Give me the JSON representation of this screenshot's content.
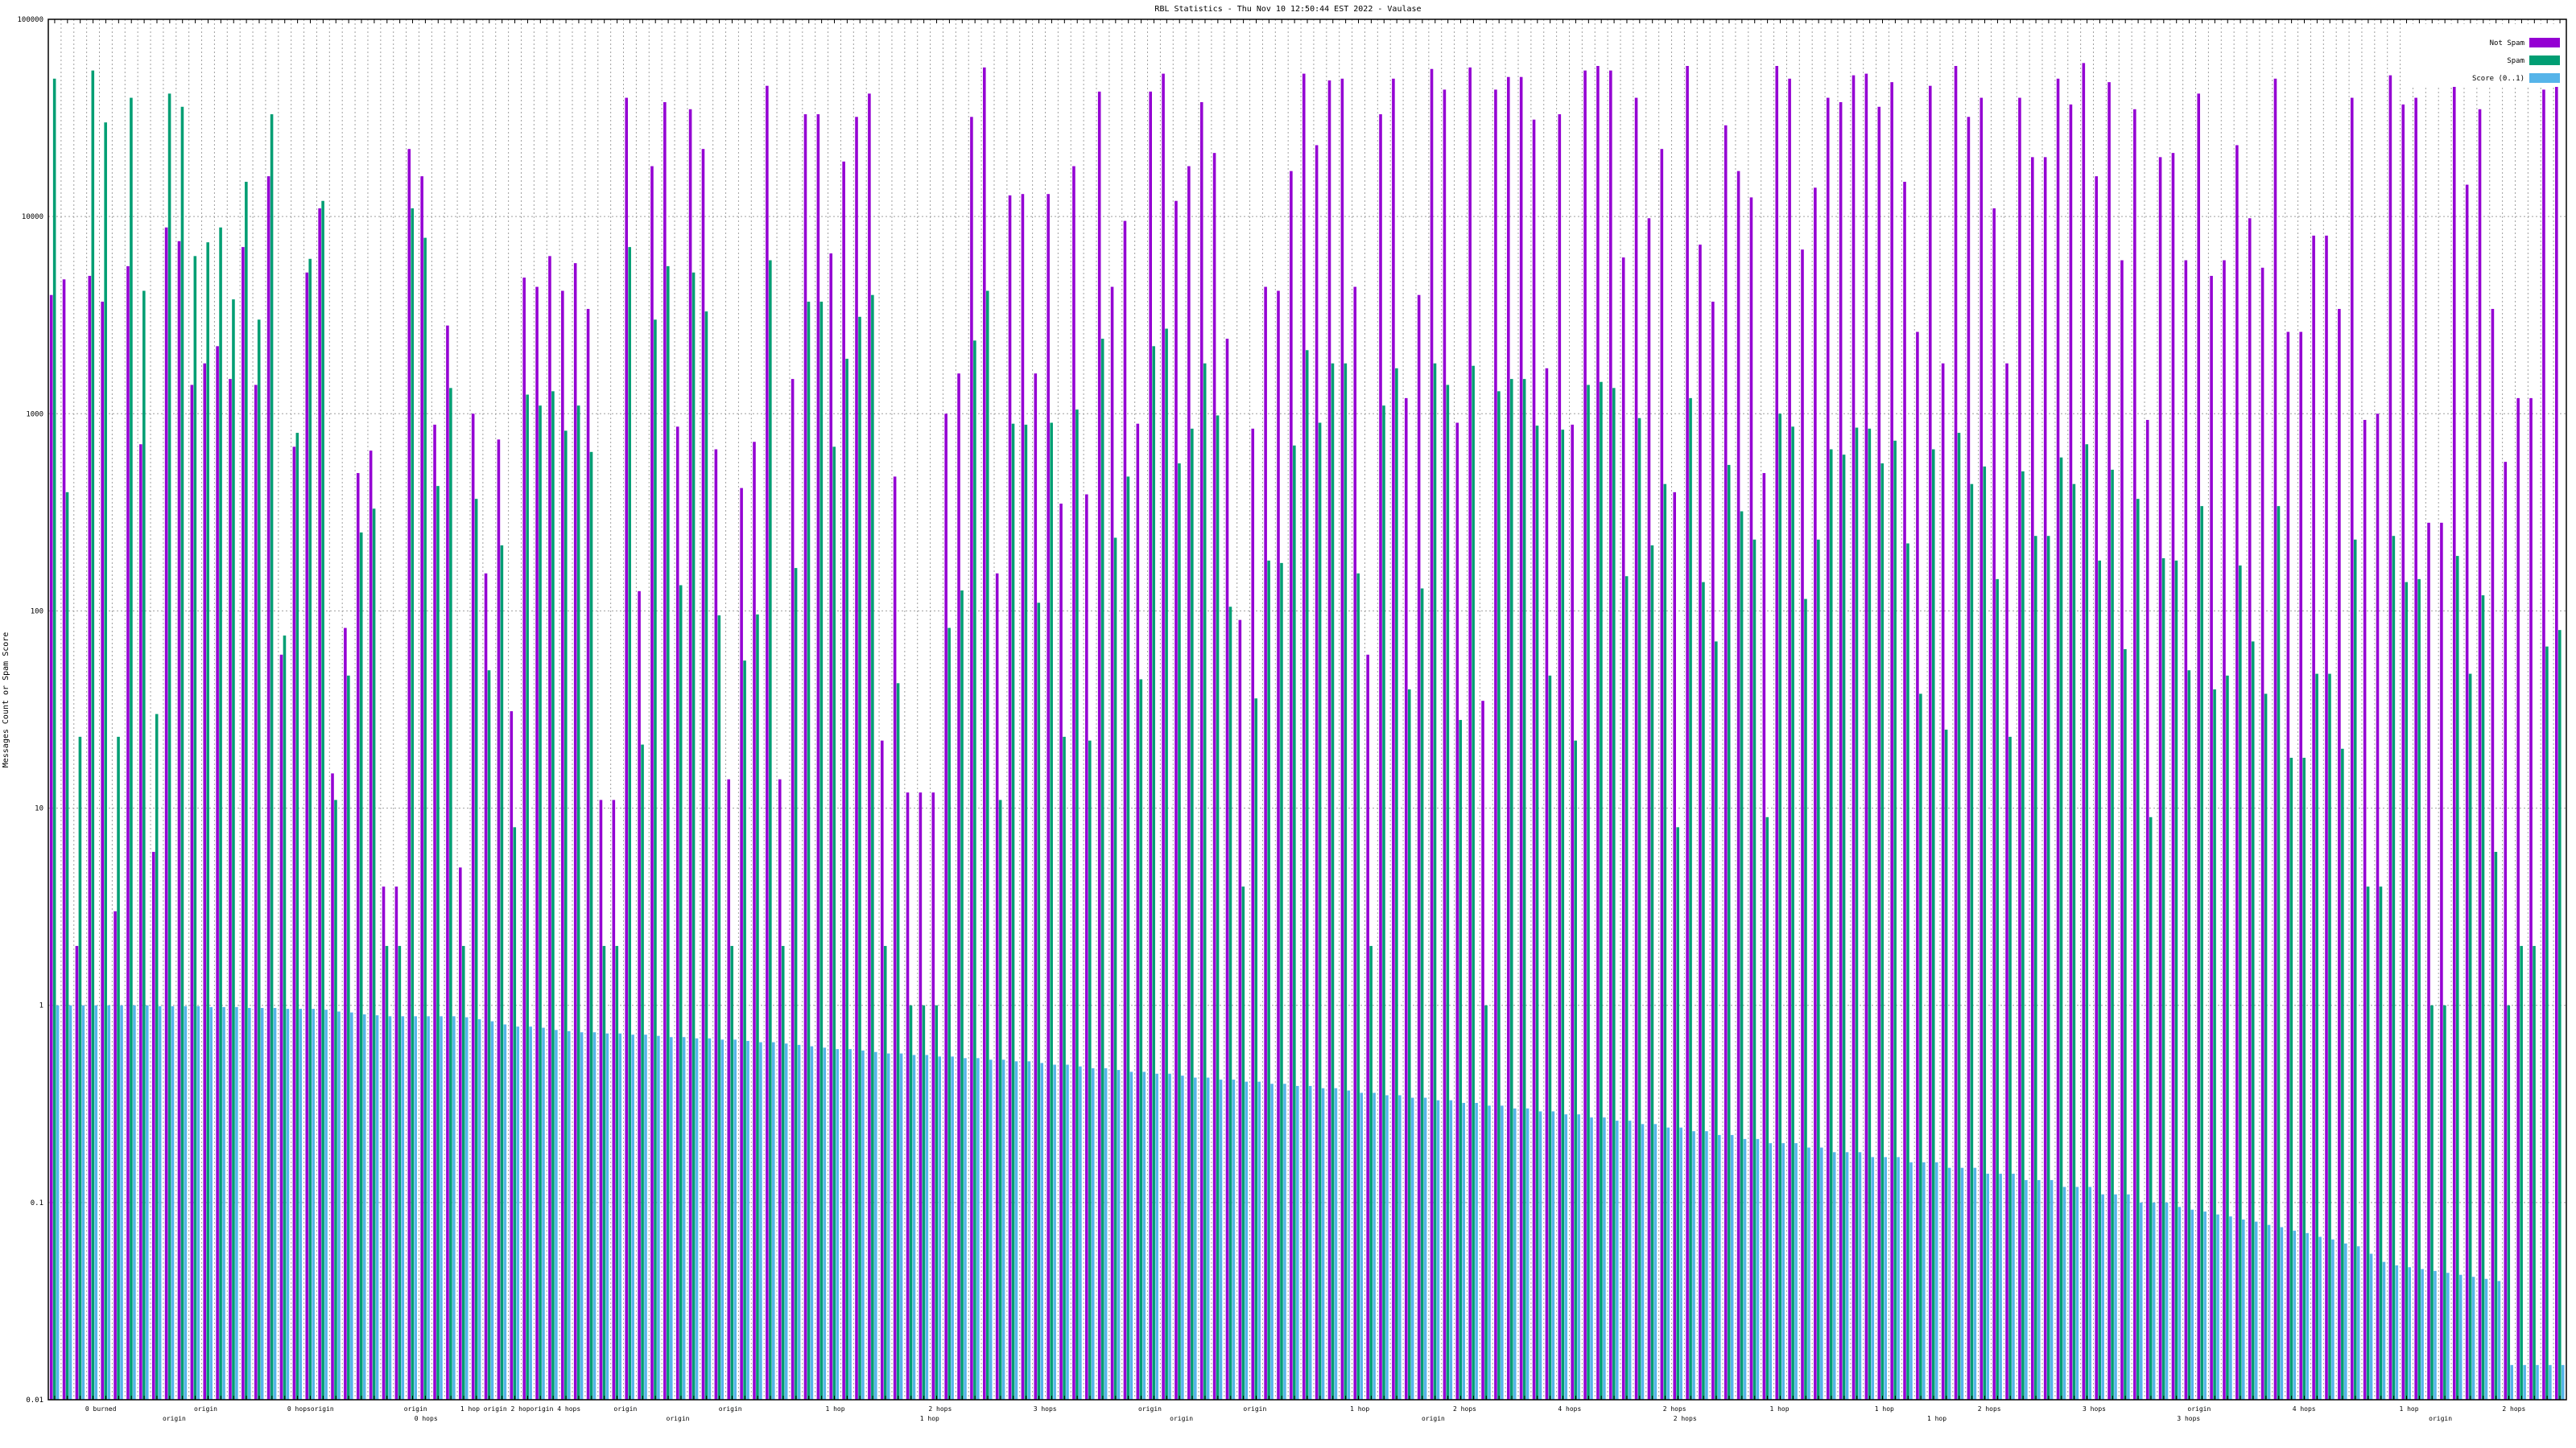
{
  "chart_data": {
    "type": "bar",
    "title": "RBL Statistics - Thu Nov 10 12:50:44 EST 2022 - Vaulase",
    "ylabel": "Messages Count or Spam Score",
    "xlabel": "",
    "yscale": "log",
    "ylim": [
      0.01,
      100000
    ],
    "yticks": [
      "0.01",
      "0.1",
      "1",
      "10",
      "100",
      "1000",
      "10000",
      "100000"
    ],
    "legend_position": "top-right",
    "colors": {
      "not_spam": "#9400d3",
      "spam": "#009e73",
      "score": "#56b4e9"
    },
    "series_names": {
      "not_spam": "Not Spam",
      "spam": "Spam",
      "score": "Score (0..1)"
    },
    "x_label_rows": [
      [
        "0 burned",
        "origin",
        "0 hopsorigin",
        "origin",
        "1 hop origin 2 hoporigin 4 hops",
        "origin",
        "origin",
        "1 hop",
        "2 hops",
        "3 hops",
        "origin",
        "origin",
        "1 hop",
        "2 hops",
        "4 hops",
        "2 hops",
        "1 hop",
        "1 hop",
        "2 hops",
        "3 hops",
        "origin",
        "4 hops",
        "1 hop",
        "2 hops"
      ],
      [
        "origin",
        "0 hops",
        "origin",
        "1 hop",
        "origin",
        "origin",
        "2 hops",
        "1 hop",
        "3 hops",
        "origin"
      ]
    ],
    "bars": [
      {
        "not_spam": 4000,
        "spam": 50000,
        "score": 1.0
      },
      {
        "not_spam": 4800,
        "spam": 400,
        "score": 1.0
      },
      {
        "not_spam": 2,
        "spam": 23,
        "score": 1.0
      },
      {
        "not_spam": 5000,
        "spam": 55000,
        "score": 1.0
      },
      {
        "not_spam": 3700,
        "spam": 30000,
        "score": 1.0
      },
      {
        "not_spam": 3,
        "spam": 23,
        "score": 1.0
      },
      {
        "not_spam": 5600,
        "spam": 40000,
        "score": 1.0
      },
      {
        "not_spam": 700,
        "spam": 4200,
        "score": 1.0
      },
      {
        "not_spam": 6,
        "spam": 30,
        "score": 0.99
      },
      {
        "not_spam": 8800,
        "spam": 42000,
        "score": 0.99
      },
      {
        "not_spam": 7500,
        "spam": 36000,
        "score": 0.99
      },
      {
        "not_spam": 1400,
        "spam": 6300,
        "score": 0.99
      },
      {
        "not_spam": 1800,
        "spam": 7400,
        "score": 0.98
      },
      {
        "not_spam": 2200,
        "spam": 8800,
        "score": 0.98
      },
      {
        "not_spam": 1500,
        "spam": 3800,
        "score": 0.98
      },
      {
        "not_spam": 7000,
        "spam": 15000,
        "score": 0.97
      },
      {
        "not_spam": 1400,
        "spam": 3000,
        "score": 0.97
      },
      {
        "not_spam": 16000,
        "spam": 33000,
        "score": 0.97
      },
      {
        "not_spam": 60,
        "spam": 75,
        "score": 0.96
      },
      {
        "not_spam": 680,
        "spam": 800,
        "score": 0.96
      },
      {
        "not_spam": 5200,
        "spam": 6100,
        "score": 0.96
      },
      {
        "not_spam": 11000,
        "spam": 12000,
        "score": 0.95
      },
      {
        "not_spam": 15,
        "spam": 11,
        "score": 0.93
      },
      {
        "not_spam": 82,
        "spam": 47,
        "score": 0.92
      },
      {
        "not_spam": 500,
        "spam": 250,
        "score": 0.9
      },
      {
        "not_spam": 650,
        "spam": 330,
        "score": 0.89
      },
      {
        "not_spam": 4,
        "spam": 2,
        "score": 0.88
      },
      {
        "not_spam": 4,
        "spam": 2,
        "score": 0.88
      },
      {
        "not_spam": 22000,
        "spam": 11000,
        "score": 0.88
      },
      {
        "not_spam": 16000,
        "spam": 7800,
        "score": 0.88
      },
      {
        "not_spam": 880,
        "spam": 430,
        "score": 0.88
      },
      {
        "not_spam": 2800,
        "spam": 1350,
        "score": 0.88
      },
      {
        "not_spam": 5,
        "spam": 2,
        "score": 0.87
      },
      {
        "not_spam": 1000,
        "spam": 370,
        "score": 0.85
      },
      {
        "not_spam": 155,
        "spam": 50,
        "score": 0.83
      },
      {
        "not_spam": 740,
        "spam": 215,
        "score": 0.8
      },
      {
        "not_spam": 31,
        "spam": 8,
        "score": 0.78
      },
      {
        "not_spam": 4900,
        "spam": 1250,
        "score": 0.78
      },
      {
        "not_spam": 4400,
        "spam": 1100,
        "score": 0.77
      },
      {
        "not_spam": 6300,
        "spam": 1300,
        "score": 0.75
      },
      {
        "not_spam": 4200,
        "spam": 820,
        "score": 0.74
      },
      {
        "not_spam": 5800,
        "spam": 1100,
        "score": 0.73
      },
      {
        "not_spam": 3400,
        "spam": 640,
        "score": 0.73
      },
      {
        "not_spam": 11,
        "spam": 2,
        "score": 0.72
      },
      {
        "not_spam": 11,
        "spam": 2,
        "score": 0.72
      },
      {
        "not_spam": 40000,
        "spam": 7000,
        "score": 0.71
      },
      {
        "not_spam": 126,
        "spam": 21,
        "score": 0.71
      },
      {
        "not_spam": 18000,
        "spam": 3000,
        "score": 0.7
      },
      {
        "not_spam": 38000,
        "spam": 5600,
        "score": 0.69
      },
      {
        "not_spam": 860,
        "spam": 135,
        "score": 0.69
      },
      {
        "not_spam": 35000,
        "spam": 5200,
        "score": 0.68
      },
      {
        "not_spam": 22000,
        "spam": 3300,
        "score": 0.68
      },
      {
        "not_spam": 660,
        "spam": 95,
        "score": 0.67
      },
      {
        "not_spam": 14,
        "spam": 2,
        "score": 0.67
      },
      {
        "not_spam": 420,
        "spam": 56,
        "score": 0.66
      },
      {
        "not_spam": 720,
        "spam": 96,
        "score": 0.65
      },
      {
        "not_spam": 46000,
        "spam": 6000,
        "score": 0.65
      },
      {
        "not_spam": 14,
        "spam": 2,
        "score": 0.64
      },
      {
        "not_spam": 1500,
        "spam": 165,
        "score": 0.63
      },
      {
        "not_spam": 33000,
        "spam": 3700,
        "score": 0.62
      },
      {
        "not_spam": 33000,
        "spam": 3700,
        "score": 0.61
      },
      {
        "not_spam": 6500,
        "spam": 680,
        "score": 0.6
      },
      {
        "not_spam": 19000,
        "spam": 1900,
        "score": 0.6
      },
      {
        "not_spam": 32000,
        "spam": 3100,
        "score": 0.59
      },
      {
        "not_spam": 42000,
        "spam": 4000,
        "score": 0.58
      },
      {
        "not_spam": 22,
        "spam": 2,
        "score": 0.57
      },
      {
        "not_spam": 480,
        "spam": 43,
        "score": 0.57
      },
      {
        "not_spam": 12,
        "spam": 1,
        "score": 0.56
      },
      {
        "not_spam": 12,
        "spam": 1,
        "score": 0.56
      },
      {
        "not_spam": 12,
        "spam": 1,
        "score": 0.55
      },
      {
        "not_spam": 1000,
        "spam": 82,
        "score": 0.55
      },
      {
        "not_spam": 1600,
        "spam": 127,
        "score": 0.54
      },
      {
        "not_spam": 32000,
        "spam": 2350,
        "score": 0.54
      },
      {
        "not_spam": 57000,
        "spam": 4200,
        "score": 0.53
      },
      {
        "not_spam": 155,
        "spam": 11,
        "score": 0.53
      },
      {
        "not_spam": 12800,
        "spam": 890,
        "score": 0.52
      },
      {
        "not_spam": 13000,
        "spam": 880,
        "score": 0.52
      },
      {
        "not_spam": 1600,
        "spam": 110,
        "score": 0.51
      },
      {
        "not_spam": 13000,
        "spam": 900,
        "score": 0.5
      },
      {
        "not_spam": 350,
        "spam": 23,
        "score": 0.5
      },
      {
        "not_spam": 18000,
        "spam": 1050,
        "score": 0.49
      },
      {
        "not_spam": 390,
        "spam": 22,
        "score": 0.48
      },
      {
        "not_spam": 43000,
        "spam": 2400,
        "score": 0.48
      },
      {
        "not_spam": 4400,
        "spam": 235,
        "score": 0.47
      },
      {
        "not_spam": 9500,
        "spam": 480,
        "score": 0.46
      },
      {
        "not_spam": 890,
        "spam": 45,
        "score": 0.46
      },
      {
        "not_spam": 43000,
        "spam": 2200,
        "score": 0.45
      },
      {
        "not_spam": 53000,
        "spam": 2700,
        "score": 0.45
      },
      {
        "not_spam": 12000,
        "spam": 560,
        "score": 0.44
      },
      {
        "not_spam": 18000,
        "spam": 840,
        "score": 0.43
      },
      {
        "not_spam": 38000,
        "spam": 1800,
        "score": 0.43
      },
      {
        "not_spam": 21000,
        "spam": 980,
        "score": 0.42
      },
      {
        "not_spam": 2400,
        "spam": 105,
        "score": 0.42
      },
      {
        "not_spam": 90,
        "spam": 4,
        "score": 0.41
      },
      {
        "not_spam": 840,
        "spam": 36,
        "score": 0.41
      },
      {
        "not_spam": 4400,
        "spam": 180,
        "score": 0.4
      },
      {
        "not_spam": 4200,
        "spam": 175,
        "score": 0.4
      },
      {
        "not_spam": 17000,
        "spam": 690,
        "score": 0.39
      },
      {
        "not_spam": 53000,
        "spam": 2100,
        "score": 0.39
      },
      {
        "not_spam": 23000,
        "spam": 900,
        "score": 0.38
      },
      {
        "not_spam": 49000,
        "spam": 1800,
        "score": 0.38
      },
      {
        "not_spam": 50000,
        "spam": 1800,
        "score": 0.37
      },
      {
        "not_spam": 4400,
        "spam": 155,
        "score": 0.36
      },
      {
        "not_spam": 60,
        "spam": 2,
        "score": 0.36
      },
      {
        "not_spam": 33000,
        "spam": 1100,
        "score": 0.35
      },
      {
        "not_spam": 50000,
        "spam": 1700,
        "score": 0.35
      },
      {
        "not_spam": 1200,
        "spam": 40,
        "score": 0.34
      },
      {
        "not_spam": 4000,
        "spam": 130,
        "score": 0.34
      },
      {
        "not_spam": 56000,
        "spam": 1800,
        "score": 0.33
      },
      {
        "not_spam": 44000,
        "spam": 1400,
        "score": 0.33
      },
      {
        "not_spam": 900,
        "spam": 28,
        "score": 0.32
      },
      {
        "not_spam": 57000,
        "spam": 1750,
        "score": 0.32
      },
      {
        "not_spam": 35,
        "spam": 1,
        "score": 0.31
      },
      {
        "not_spam": 44000,
        "spam": 1300,
        "score": 0.31
      },
      {
        "not_spam": 51000,
        "spam": 1500,
        "score": 0.3
      },
      {
        "not_spam": 51000,
        "spam": 1500,
        "score": 0.3
      },
      {
        "not_spam": 31000,
        "spam": 870,
        "score": 0.29
      },
      {
        "not_spam": 1700,
        "spam": 47,
        "score": 0.29
      },
      {
        "not_spam": 33000,
        "spam": 830,
        "score": 0.28
      },
      {
        "not_spam": 880,
        "spam": 22,
        "score": 0.28
      },
      {
        "not_spam": 55000,
        "spam": 1400,
        "score": 0.27
      },
      {
        "not_spam": 58000,
        "spam": 1450,
        "score": 0.27
      },
      {
        "not_spam": 55000,
        "spam": 1350,
        "score": 0.26
      },
      {
        "not_spam": 6200,
        "spam": 150,
        "score": 0.26
      },
      {
        "not_spam": 40000,
        "spam": 950,
        "score": 0.25
      },
      {
        "not_spam": 9800,
        "spam": 215,
        "score": 0.25
      },
      {
        "not_spam": 22000,
        "spam": 440,
        "score": 0.24
      },
      {
        "not_spam": 400,
        "spam": 8,
        "score": 0.24
      },
      {
        "not_spam": 58000,
        "spam": 1200,
        "score": 0.23
      },
      {
        "not_spam": 7200,
        "spam": 140,
        "score": 0.23
      },
      {
        "not_spam": 3700,
        "spam": 70,
        "score": 0.22
      },
      {
        "not_spam": 29000,
        "spam": 550,
        "score": 0.22
      },
      {
        "not_spam": 17000,
        "spam": 320,
        "score": 0.21
      },
      {
        "not_spam": 12500,
        "spam": 230,
        "score": 0.21
      },
      {
        "not_spam": 500,
        "spam": 9,
        "score": 0.2
      },
      {
        "not_spam": 58000,
        "spam": 1000,
        "score": 0.2
      },
      {
        "not_spam": 50000,
        "spam": 860,
        "score": 0.2
      },
      {
        "not_spam": 6800,
        "spam": 115,
        "score": 0.19
      },
      {
        "not_spam": 14000,
        "spam": 230,
        "score": 0.19
      },
      {
        "not_spam": 40000,
        "spam": 660,
        "score": 0.18
      },
      {
        "not_spam": 38000,
        "spam": 620,
        "score": 0.18
      },
      {
        "not_spam": 52000,
        "spam": 850,
        "score": 0.18
      },
      {
        "not_spam": 53000,
        "spam": 840,
        "score": 0.17
      },
      {
        "not_spam": 36000,
        "spam": 560,
        "score": 0.17
      },
      {
        "not_spam": 48000,
        "spam": 730,
        "score": 0.17
      },
      {
        "not_spam": 15000,
        "spam": 220,
        "score": 0.16
      },
      {
        "not_spam": 2600,
        "spam": 38,
        "score": 0.16
      },
      {
        "not_spam": 46000,
        "spam": 660,
        "score": 0.16
      },
      {
        "not_spam": 1800,
        "spam": 25,
        "score": 0.15
      },
      {
        "not_spam": 58000,
        "spam": 800,
        "score": 0.15
      },
      {
        "not_spam": 32000,
        "spam": 440,
        "score": 0.15
      },
      {
        "not_spam": 40000,
        "spam": 540,
        "score": 0.14
      },
      {
        "not_spam": 11000,
        "spam": 145,
        "score": 0.14
      },
      {
        "not_spam": 1800,
        "spam": 23,
        "score": 0.14
      },
      {
        "not_spam": 40000,
        "spam": 510,
        "score": 0.13
      },
      {
        "not_spam": 20000,
        "spam": 240,
        "score": 0.13
      },
      {
        "not_spam": 20000,
        "spam": 240,
        "score": 0.13
      },
      {
        "not_spam": 50000,
        "spam": 600,
        "score": 0.12
      },
      {
        "not_spam": 37000,
        "spam": 440,
        "score": 0.12
      },
      {
        "not_spam": 60000,
        "spam": 700,
        "score": 0.12
      },
      {
        "not_spam": 16000,
        "spam": 180,
        "score": 0.11
      },
      {
        "not_spam": 48000,
        "spam": 520,
        "score": 0.11
      },
      {
        "not_spam": 6000,
        "spam": 64,
        "score": 0.11
      },
      {
        "not_spam": 35000,
        "spam": 370,
        "score": 0.1
      },
      {
        "not_spam": 930,
        "spam": 9,
        "score": 0.1
      },
      {
        "not_spam": 20000,
        "spam": 185,
        "score": 0.1
      },
      {
        "not_spam": 21000,
        "spam": 180,
        "score": 0.095
      },
      {
        "not_spam": 6000,
        "spam": 50,
        "score": 0.092
      },
      {
        "not_spam": 42000,
        "spam": 340,
        "score": 0.09
      },
      {
        "not_spam": 5000,
        "spam": 40,
        "score": 0.087
      },
      {
        "not_spam": 6000,
        "spam": 47,
        "score": 0.085
      },
      {
        "not_spam": 23000,
        "spam": 170,
        "score": 0.082
      },
      {
        "not_spam": 9800,
        "spam": 70,
        "score": 0.08
      },
      {
        "not_spam": 5500,
        "spam": 38,
        "score": 0.077
      },
      {
        "not_spam": 50000,
        "spam": 340,
        "score": 0.075
      },
      {
        "not_spam": 2600,
        "spam": 18,
        "score": 0.072
      },
      {
        "not_spam": 2600,
        "spam": 18,
        "score": 0.07
      },
      {
        "not_spam": 8000,
        "spam": 48,
        "score": 0.067
      },
      {
        "not_spam": 8000,
        "spam": 48,
        "score": 0.065
      },
      {
        "not_spam": 3400,
        "spam": 20,
        "score": 0.062
      },
      {
        "not_spam": 40000,
        "spam": 230,
        "score": 0.06
      },
      {
        "not_spam": 930,
        "spam": 4,
        "score": 0.055
      },
      {
        "not_spam": 1000,
        "spam": 4,
        "score": 0.05
      },
      {
        "not_spam": 52000,
        "spam": 240,
        "score": 0.048
      },
      {
        "not_spam": 37000,
        "spam": 140,
        "score": 0.047
      },
      {
        "not_spam": 40000,
        "spam": 145,
        "score": 0.046
      },
      {
        "not_spam": 280,
        "spam": 1,
        "score": 0.045
      },
      {
        "not_spam": 280,
        "spam": 1,
        "score": 0.044
      },
      {
        "not_spam": 54000,
        "spam": 190,
        "score": 0.043
      },
      {
        "not_spam": 14500,
        "spam": 48,
        "score": 0.042
      },
      {
        "not_spam": 35000,
        "spam": 120,
        "score": 0.041
      },
      {
        "not_spam": 3400,
        "spam": 6,
        "score": 0.04
      },
      {
        "not_spam": 570,
        "spam": 1,
        "score": 0.015
      },
      {
        "not_spam": 1200,
        "spam": 2,
        "score": 0.015
      },
      {
        "not_spam": 1200,
        "spam": 2,
        "score": 0.015
      },
      {
        "not_spam": 44000,
        "spam": 66,
        "score": 0.015
      },
      {
        "not_spam": 55000,
        "spam": 80,
        "score": 0.015
      }
    ]
  }
}
